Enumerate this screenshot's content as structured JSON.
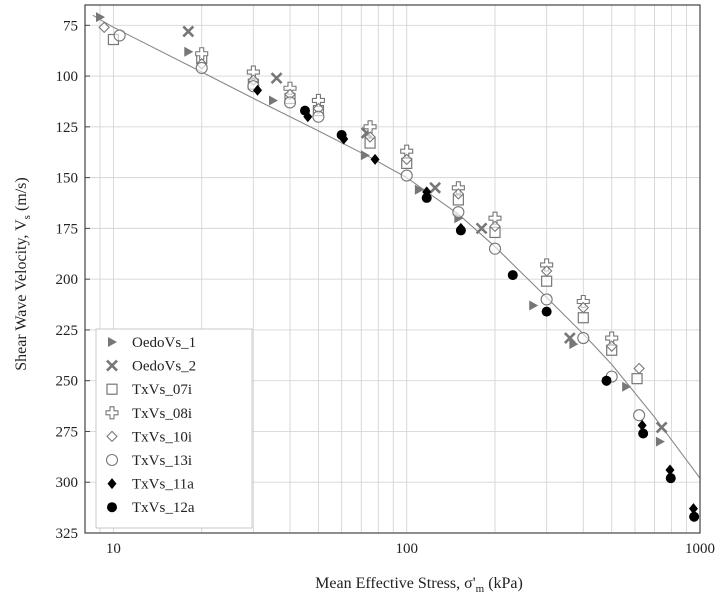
{
  "chart_data": {
    "type": "scatter",
    "xlabel_main": "Mean Effective Stress, σ'",
    "xlabel_sub": "m",
    "xlabel_unit": " (kPa)",
    "ylabel_main": "Shear Wave Velocity, V",
    "ylabel_sub": "s",
    "ylabel_unit": " (m/s)",
    "xscale": "log",
    "xlim": [
      8,
      1000
    ],
    "ylim": [
      65,
      325
    ],
    "y_inverted": true,
    "grid": true,
    "legend_position": "bottom-left",
    "xticks": [
      10,
      100,
      1000
    ],
    "xtick_labels": [
      "10",
      "100",
      "1000"
    ],
    "yticks": [
      75,
      100,
      125,
      150,
      175,
      200,
      225,
      250,
      275,
      300,
      325
    ],
    "ytick_labels": [
      "75",
      "100",
      "125",
      "150",
      "175",
      "200",
      "225",
      "250",
      "275",
      "300",
      "325"
    ],
    "fit_curve": [
      [
        8.5,
        70
      ],
      [
        10,
        76
      ],
      [
        20,
        98
      ],
      [
        30,
        111
      ],
      [
        50,
        127
      ],
      [
        75,
        140
      ],
      [
        100,
        150
      ],
      [
        150,
        168
      ],
      [
        200,
        184
      ],
      [
        300,
        209
      ],
      [
        400,
        227
      ],
      [
        500,
        242
      ],
      [
        700,
        268
      ],
      [
        1000,
        298
      ]
    ],
    "series": [
      {
        "name": "OedoVs_1",
        "marker": "triangle-right",
        "color": "#777777",
        "x": [
          9,
          18,
          35,
          72,
          110,
          150,
          270,
          370,
          560,
          730
        ],
        "y": [
          71,
          88,
          112,
          139,
          156,
          170,
          213,
          232,
          253,
          280
        ]
      },
      {
        "name": "OedoVs_2",
        "marker": "x",
        "color": "#777777",
        "x": [
          18,
          36,
          73,
          125,
          180,
          360,
          740
        ],
        "y": [
          78,
          101,
          128,
          155,
          175,
          229,
          273
        ]
      },
      {
        "name": "TxVs_07i",
        "marker": "square-open",
        "color": "#777777",
        "x": [
          10,
          20,
          30,
          40,
          50,
          75,
          100,
          150,
          200,
          300,
          400,
          500,
          610
        ],
        "y": [
          82,
          91,
          104,
          111,
          117,
          133,
          143,
          161,
          177,
          201,
          219,
          235,
          249
        ]
      },
      {
        "name": "TxVs_08i",
        "marker": "plus-open",
        "color": "#777777",
        "x": [
          20,
          30,
          40,
          50,
          75,
          100,
          150,
          200,
          300,
          400,
          500
        ],
        "y": [
          89,
          98,
          106,
          112,
          125,
          137,
          155,
          170,
          193,
          211,
          229
        ]
      },
      {
        "name": "TxVs_10i",
        "marker": "diamond-open",
        "color": "#777777",
        "x": [
          9.3,
          20,
          30,
          40,
          50,
          75,
          100,
          150,
          200,
          300,
          400,
          500,
          620
        ],
        "y": [
          76,
          94,
          102,
          109,
          116,
          130,
          141,
          158,
          174,
          196,
          214,
          233,
          244
        ]
      },
      {
        "name": "TxVs_13i",
        "marker": "circle-open",
        "color": "#777777",
        "x": [
          10.5,
          20,
          30,
          40,
          50,
          100,
          150,
          200,
          300,
          400,
          500,
          620
        ],
        "y": [
          80,
          96,
          105,
          113,
          120,
          149,
          167,
          185,
          210,
          229,
          248,
          267
        ]
      },
      {
        "name": "TxVs_11a",
        "marker": "diamond-filled",
        "color": "#000000",
        "x": [
          31,
          46,
          61,
          78,
          117,
          153,
          480,
          635,
          790,
          950
        ],
        "y": [
          107,
          120,
          131,
          141,
          157,
          175,
          250,
          272,
          294,
          313
        ]
      },
      {
        "name": "TxVs_12a",
        "marker": "circle-filled",
        "color": "#000000",
        "x": [
          45,
          60,
          117,
          153,
          230,
          300,
          480,
          640,
          795,
          955
        ],
        "y": [
          117,
          129,
          160,
          176,
          198,
          216,
          250,
          276,
          298,
          317
        ]
      }
    ]
  }
}
